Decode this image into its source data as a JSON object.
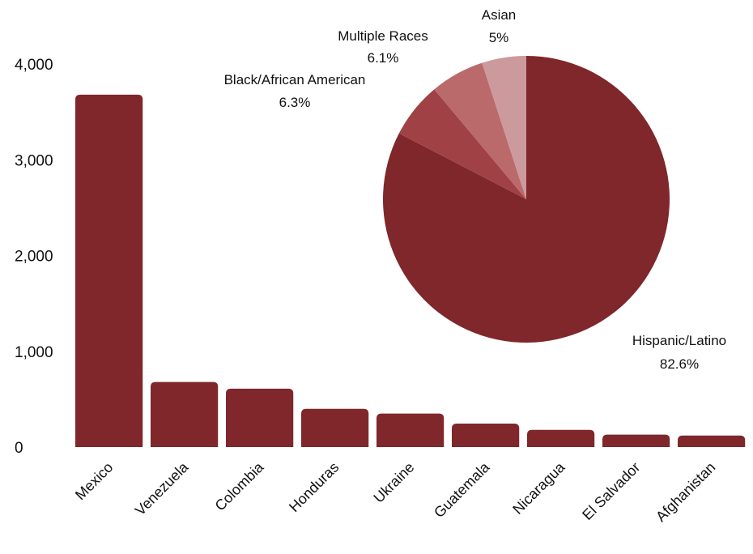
{
  "chart_data": [
    {
      "type": "bar",
      "categories": [
        "Mexico",
        "Venezuela",
        "Colombia",
        "Honduras",
        "Ukraine",
        "Guatemala",
        "Nicaragua",
        "El Salvador",
        "Afghanistan"
      ],
      "values": [
        3680,
        680,
        610,
        400,
        350,
        245,
        180,
        130,
        120
      ],
      "ylim": [
        0,
        4000
      ],
      "yticks": [
        0,
        1000,
        2000,
        3000,
        4000
      ],
      "ytick_labels": [
        "0",
        "1,000",
        "2,000",
        "3,000",
        "4,000"
      ],
      "grid": false,
      "bar_color": "#7f272b"
    },
    {
      "type": "pie",
      "slices": [
        {
          "label": "Hispanic/Latino",
          "value": 82.6,
          "value_label": "82.6%",
          "color": "#7f272b"
        },
        {
          "label": "Black/African American",
          "value": 6.3,
          "value_label": "6.3%",
          "color": "#a04245"
        },
        {
          "label": "Multiple Races",
          "value": 6.1,
          "value_label": "6.1%",
          "color": "#bb6a6c"
        },
        {
          "label": "Asian",
          "value": 5.0,
          "value_label": "5%",
          "color": "#cc9a9c"
        }
      ]
    }
  ]
}
